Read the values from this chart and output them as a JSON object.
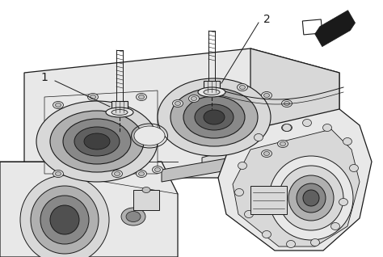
{
  "bg_color": "#ffffff",
  "line_color": "#1a1a1a",
  "surface_light": "#e8e8e8",
  "surface_mid": "#d8d8d8",
  "surface_dark": "#c0c0c0",
  "hole_rim": "#b0b0b0",
  "hole_inner": "#888888",
  "hole_deep": "#606060",
  "label1": "1",
  "label2": "2",
  "lw_main": 0.9,
  "lw_thin": 0.5,
  "lw_thick": 1.1
}
